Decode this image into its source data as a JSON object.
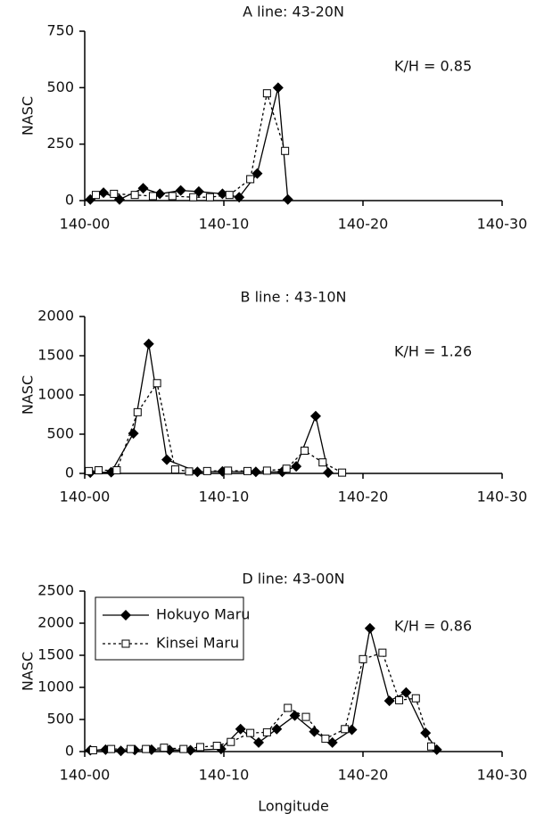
{
  "chart_data": [
    {
      "type": "line",
      "title": "A line: 43-20N",
      "ylabel": "NASC",
      "annotation": "K/H = 0.85",
      "xlim": [
        0,
        30
      ],
      "xticks": [
        {
          "value": 0,
          "label": "140-00"
        },
        {
          "value": 10,
          "label": "140-10"
        },
        {
          "value": 20,
          "label": "140-20"
        },
        {
          "value": 30,
          "label": "140-30"
        }
      ],
      "ylim": [
        0,
        750
      ],
      "yticks": [
        0,
        250,
        500,
        750
      ],
      "series": [
        {
          "color": "#000000",
          "line_style": "solid",
          "marker": "diamond",
          "x": [
            0.4,
            1.35,
            2.5,
            4.2,
            5.4,
            6.9,
            8.2,
            9.9,
            11.1,
            12.4,
            13.9,
            14.6
          ],
          "values": [
            5,
            35,
            5,
            55,
            30,
            45,
            40,
            30,
            15,
            120,
            500,
            5
          ]
        },
        {
          "color": "#000000",
          "line_style": "dotted",
          "marker": "square",
          "x": [
            0.8,
            2.1,
            3.6,
            4.9,
            6.3,
            7.8,
            9.0,
            10.4,
            11.9,
            13.1,
            14.4
          ],
          "values": [
            25,
            30,
            25,
            20,
            20,
            15,
            15,
            25,
            95,
            475,
            220
          ]
        }
      ]
    },
    {
      "type": "line",
      "title": "B line : 43-10N",
      "ylabel": "NASC",
      "annotation": "K/H = 1.26",
      "xlim": [
        0,
        30
      ],
      "xticks": [
        {
          "value": 0,
          "label": "140-00"
        },
        {
          "value": 10,
          "label": "140-10"
        },
        {
          "value": 20,
          "label": "140-20"
        },
        {
          "value": 30,
          "label": "140-30"
        }
      ],
      "ylim": [
        0,
        2000
      ],
      "yticks": [
        0,
        500,
        1000,
        1500,
        2000
      ],
      "series": [
        {
          "color": "#000000",
          "line_style": "solid",
          "marker": "diamond",
          "x": [
            0.4,
            1.9,
            3.5,
            4.6,
            5.9,
            8.1,
            9.9,
            12.3,
            14.2,
            15.2,
            16.6,
            17.5
          ],
          "values": [
            10,
            15,
            510,
            1650,
            175,
            20,
            25,
            20,
            20,
            90,
            730,
            10
          ]
        },
        {
          "color": "#000000",
          "line_style": "dotted",
          "marker": "square",
          "x": [
            0.3,
            1.0,
            2.3,
            3.8,
            5.2,
            6.5,
            7.5,
            8.8,
            10.3,
            11.7,
            13.1,
            14.5,
            15.8,
            17.1,
            18.5
          ],
          "values": [
            30,
            40,
            40,
            780,
            1150,
            50,
            25,
            30,
            35,
            30,
            35,
            60,
            290,
            140,
            10
          ]
        }
      ]
    },
    {
      "type": "line",
      "title": "D line: 43-00N",
      "ylabel": "NASC",
      "xlabel": "Longitude",
      "annotation": "K/H = 0.86",
      "legend": "upper left",
      "xlim": [
        0,
        30
      ],
      "xticks": [
        {
          "value": 0,
          "label": "140-00"
        },
        {
          "value": 10,
          "label": "140-10"
        },
        {
          "value": 20,
          "label": "140-20"
        },
        {
          "value": 30,
          "label": "140-30"
        }
      ],
      "ylim": [
        0,
        2500
      ],
      "yticks": [
        0,
        500,
        1000,
        1500,
        2000,
        2500
      ],
      "series": [
        {
          "name": "Hokuyo Maru",
          "color": "#000000",
          "line_style": "solid",
          "marker": "diamond",
          "x": [
            0.4,
            1.5,
            2.6,
            3.6,
            4.8,
            6.1,
            7.6,
            9.8,
            11.2,
            12.5,
            13.8,
            15.1,
            16.5,
            17.8,
            19.2,
            20.5,
            21.9,
            23.1,
            24.5,
            25.3
          ],
          "values": [
            20,
            30,
            10,
            25,
            30,
            25,
            20,
            40,
            350,
            140,
            350,
            560,
            310,
            140,
            340,
            1920,
            790,
            920,
            290,
            30
          ]
        },
        {
          "name": "Kinsei Maru",
          "color": "#000000",
          "line_style": "dotted",
          "marker": "square",
          "x": [
            0.6,
            1.9,
            3.3,
            4.4,
            5.7,
            7.1,
            8.3,
            9.5,
            10.5,
            11.9,
            13.1,
            14.6,
            15.9,
            17.3,
            18.7,
            20.0,
            21.4,
            22.6,
            23.8,
            24.9
          ],
          "values": [
            20,
            40,
            40,
            40,
            60,
            40,
            70,
            90,
            150,
            290,
            300,
            680,
            540,
            200,
            350,
            1440,
            1540,
            800,
            830,
            80
          ]
        }
      ]
    }
  ]
}
